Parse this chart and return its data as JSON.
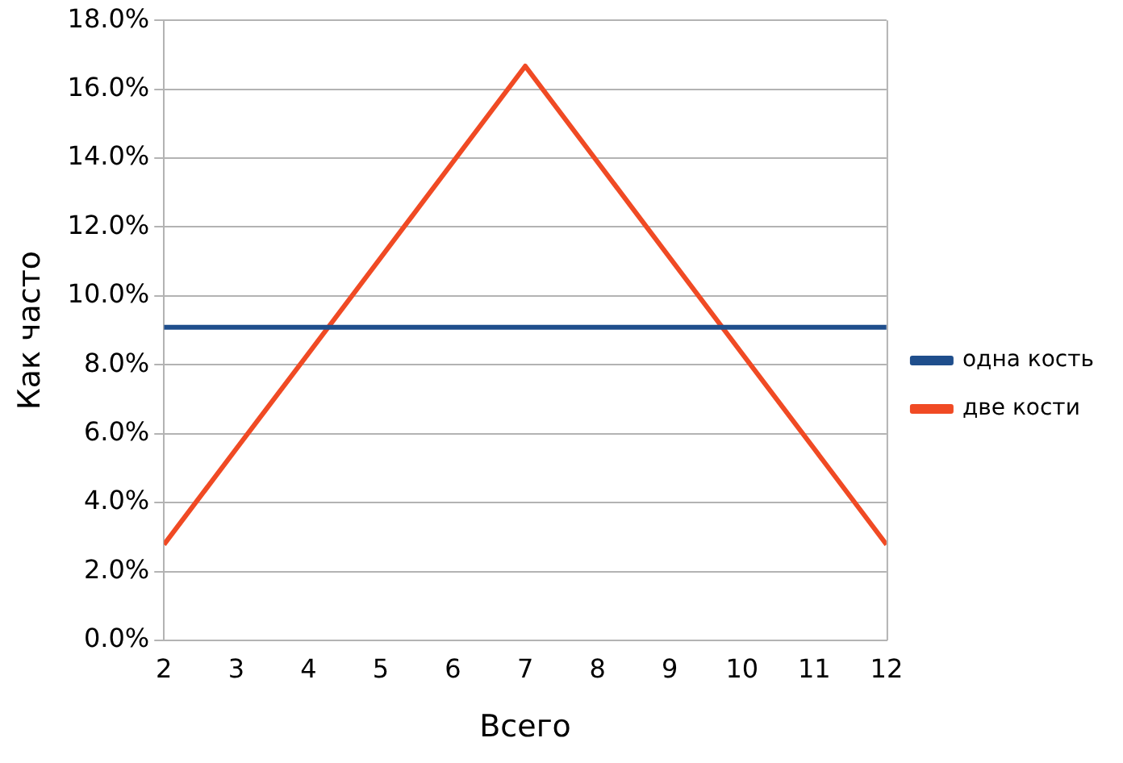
{
  "chart_data": {
    "type": "line",
    "xlabel": "Всего",
    "ylabel": "Как часто",
    "x": [
      2,
      3,
      4,
      5,
      6,
      7,
      8,
      9,
      10,
      11,
      12
    ],
    "xlim": [
      2,
      12
    ],
    "xticks": [
      2,
      3,
      4,
      5,
      6,
      7,
      8,
      9,
      10,
      11,
      12
    ],
    "ylim": [
      0,
      18
    ],
    "yticks": [
      {
        "value": 0,
        "label": "0.0%"
      },
      {
        "value": 2,
        "label": "2.0%"
      },
      {
        "value": 4,
        "label": "4.0%"
      },
      {
        "value": 6,
        "label": "6.0%"
      },
      {
        "value": 8,
        "label": "8.0%"
      },
      {
        "value": 10,
        "label": "10.0%"
      },
      {
        "value": 12,
        "label": "12.0%"
      },
      {
        "value": 14,
        "label": "14.0%"
      },
      {
        "value": 16,
        "label": "16.0%"
      },
      {
        "value": 18,
        "label": "18.0%"
      }
    ],
    "series": [
      {
        "name": "одна кость",
        "color": "#1f4e8c",
        "values": [
          9.09,
          9.09,
          9.09,
          9.09,
          9.09,
          9.09,
          9.09,
          9.09,
          9.09,
          9.09,
          9.09
        ]
      },
      {
        "name": "две кости",
        "color": "#f04a24",
        "values": [
          2.78,
          5.56,
          8.33,
          11.11,
          13.89,
          16.67,
          13.89,
          11.11,
          8.33,
          5.56,
          2.78
        ]
      }
    ],
    "grid": "y",
    "legend": "right",
    "marker": "none",
    "line_style": "solid"
  }
}
